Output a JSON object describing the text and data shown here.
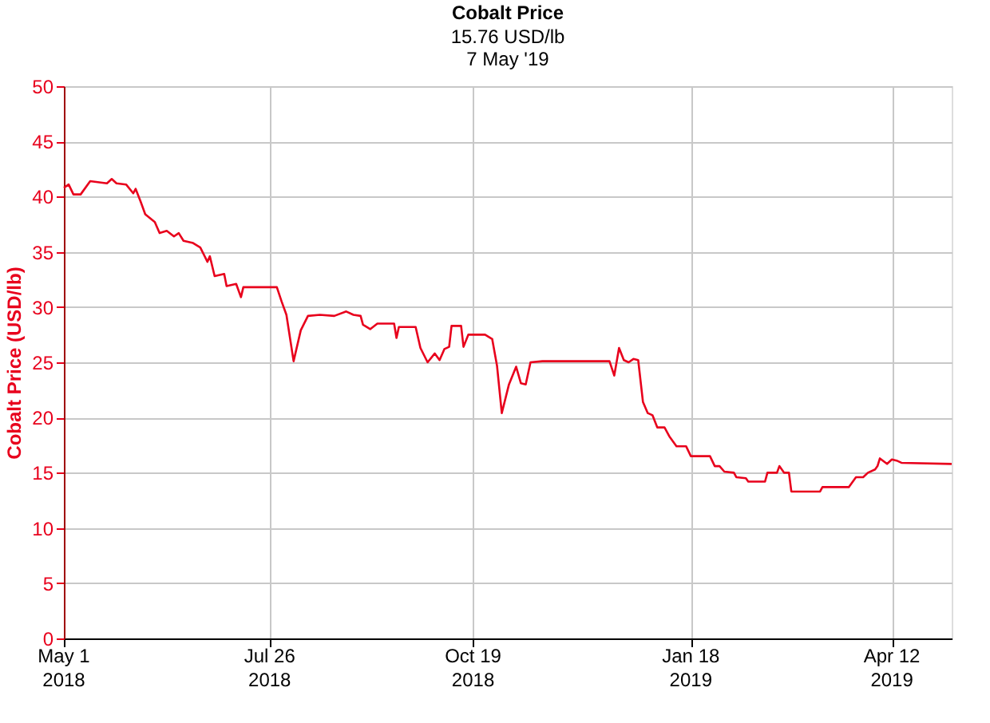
{
  "chart_data": {
    "type": "line",
    "title": "Cobalt Price",
    "subtitle": "15.76 USD/lb\n7 May '19",
    "ylabel": "Cobalt Price (USD/lb)",
    "x": [
      "2018-05-01",
      "2018-05-03",
      "2018-05-05",
      "2018-05-08",
      "2018-05-12",
      "2018-05-19",
      "2018-05-21",
      "2018-05-23",
      "2018-05-27",
      "2018-05-30",
      "2018-05-31",
      "2018-06-02",
      "2018-06-04",
      "2018-06-08",
      "2018-06-10",
      "2018-06-13",
      "2018-06-16",
      "2018-06-18",
      "2018-06-20",
      "2018-06-24",
      "2018-06-27",
      "2018-06-30",
      "2018-07-01",
      "2018-07-03",
      "2018-07-07",
      "2018-07-08",
      "2018-07-12",
      "2018-07-14",
      "2018-07-15",
      "2018-07-29",
      "2018-07-31",
      "2018-08-02",
      "2018-08-05",
      "2018-08-08",
      "2018-08-11",
      "2018-08-16",
      "2018-08-22",
      "2018-08-27",
      "2018-08-30",
      "2018-09-02",
      "2018-09-03",
      "2018-09-06",
      "2018-09-09",
      "2018-09-16",
      "2018-09-17",
      "2018-09-18",
      "2018-09-25",
      "2018-09-27",
      "2018-09-30",
      "2018-10-03",
      "2018-10-05",
      "2018-10-07",
      "2018-10-09",
      "2018-10-10",
      "2018-10-14",
      "2018-10-15",
      "2018-10-17",
      "2018-10-24",
      "2018-10-27",
      "2018-10-29",
      "2018-10-31",
      "2018-11-03",
      "2018-11-06",
      "2018-11-08",
      "2018-11-10",
      "2018-11-12",
      "2018-11-17",
      "2018-12-15",
      "2018-12-17",
      "2018-12-19",
      "2018-12-21",
      "2018-12-23",
      "2018-12-25",
      "2018-12-27",
      "2018-12-29",
      "2018-12-31",
      "2019-01-02",
      "2019-01-04",
      "2019-01-07",
      "2019-01-09",
      "2019-01-12",
      "2019-01-16",
      "2019-01-18",
      "2019-01-26",
      "2019-01-28",
      "2019-01-30",
      "2019-02-01",
      "2019-02-05",
      "2019-02-06",
      "2019-02-10",
      "2019-02-11",
      "2019-02-18",
      "2019-02-19",
      "2019-02-23",
      "2019-02-24",
      "2019-02-26",
      "2019-02-28",
      "2019-03-01",
      "2019-03-13",
      "2019-03-14",
      "2019-03-25",
      "2019-03-28",
      "2019-03-31",
      "2019-04-02",
      "2019-04-05",
      "2019-04-06",
      "2019-04-07",
      "2019-04-10",
      "2019-04-12",
      "2019-04-14",
      "2019-04-16",
      "2019-05-07"
    ],
    "series": [
      {
        "color": "#e8001c",
        "values": [
          40.8,
          41.1,
          40.2,
          40.2,
          41.4,
          41.2,
          41.6,
          41.2,
          41.1,
          40.3,
          40.7,
          39.6,
          38.4,
          37.7,
          36.7,
          36.9,
          36.4,
          36.7,
          36.0,
          35.8,
          35.4,
          34.1,
          34.6,
          32.8,
          33.0,
          31.9,
          32.1,
          30.9,
          31.8,
          31.8,
          30.5,
          29.3,
          25.1,
          27.9,
          29.2,
          29.3,
          29.2,
          29.6,
          29.3,
          29.2,
          28.4,
          28.0,
          28.5,
          28.5,
          27.2,
          28.2,
          28.2,
          26.3,
          25.0,
          25.8,
          25.2,
          26.2,
          26.4,
          28.3,
          28.3,
          26.4,
          27.5,
          27.5,
          27.1,
          24.7,
          20.4,
          23.0,
          24.6,
          23.1,
          23.0,
          25.0,
          25.1,
          25.1,
          23.8,
          26.3,
          25.2,
          25.0,
          25.3,
          25.2,
          21.4,
          20.4,
          20.2,
          19.1,
          19.1,
          18.3,
          17.4,
          17.4,
          16.5,
          16.5,
          15.6,
          15.6,
          15.1,
          15.0,
          14.6,
          14.5,
          14.2,
          14.2,
          15.0,
          15.0,
          15.6,
          15.0,
          15.0,
          13.3,
          13.3,
          13.7,
          13.7,
          14.6,
          14.6,
          15.0,
          15.3,
          15.6,
          16.3,
          15.8,
          16.2,
          16.1,
          15.9,
          15.8
        ]
      }
    ],
    "xlim": [
      "2018-05-01",
      "2019-05-07"
    ],
    "xticks": [
      {
        "value": "2018-05-01",
        "label": "May 1\n2018"
      },
      {
        "value": "2018-07-26",
        "label": "Jul 26\n2018"
      },
      {
        "value": "2018-10-19",
        "label": "Oct 19\n2018"
      },
      {
        "value": "2019-01-18",
        "label": "Jan 18\n2019"
      },
      {
        "value": "2019-04-12",
        "label": "Apr 12\n2019"
      }
    ],
    "ylim": [
      0,
      50
    ],
    "yticks": [
      0,
      5,
      10,
      15,
      20,
      25,
      30,
      35,
      40,
      45,
      50
    ],
    "grid": true,
    "line_style": "solid",
    "marker": "none"
  }
}
